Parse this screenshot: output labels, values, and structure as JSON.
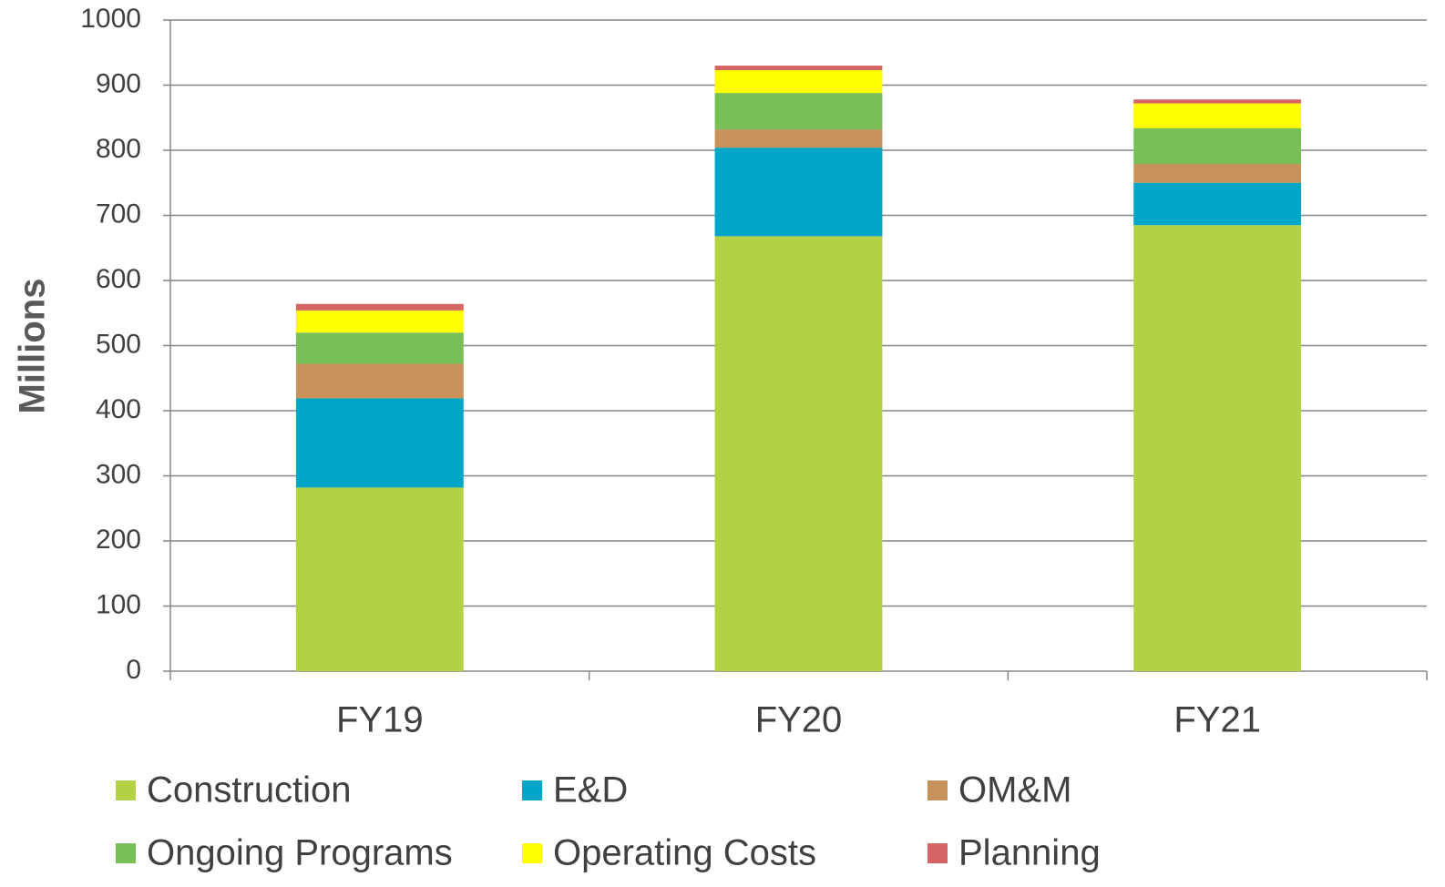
{
  "chart_data": {
    "type": "stacked_bar",
    "y_label": "Millions",
    "categories": [
      "FY19",
      "FY20",
      "FY21"
    ],
    "series": [
      {
        "name": "Construction",
        "color": "#b3d145",
        "values": [
          282,
          668,
          685
        ]
      },
      {
        "name": "E&D",
        "color": "#00a6c7",
        "values": [
          137,
          136,
          65
        ]
      },
      {
        "name": "OM&M",
        "color": "#c8905a",
        "values": [
          53,
          28,
          29
        ]
      },
      {
        "name": "Ongoing Programs",
        "color": "#77bf57",
        "values": [
          48,
          56,
          55
        ]
      },
      {
        "name": "Operating Costs",
        "color": "#ffff00",
        "values": [
          34,
          35,
          38
        ]
      },
      {
        "name": "Planning",
        "color": "#d66464",
        "values": [
          10,
          7,
          6
        ]
      }
    ],
    "ylim": [
      0,
      1000
    ],
    "yticks": [
      0,
      100,
      200,
      300,
      400,
      500,
      600,
      700,
      800,
      900,
      1000
    ],
    "grid": true,
    "legend": "bottom"
  }
}
